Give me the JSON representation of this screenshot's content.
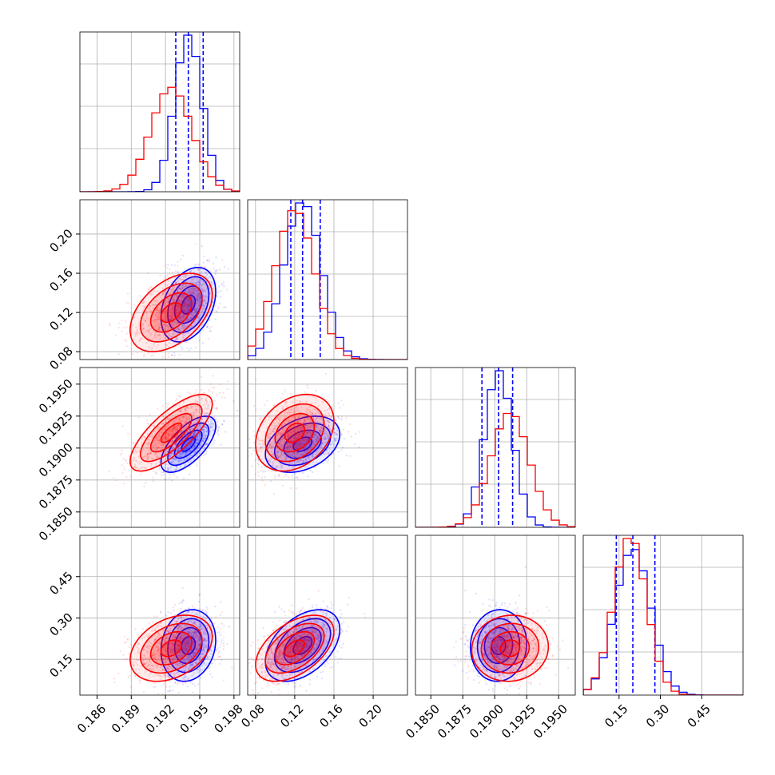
{
  "chart_data": {
    "type": "corner",
    "colors": {
      "blue": "#0000ff",
      "red": "#ff0000",
      "grid": "#b0b0b0",
      "frame": "#000000"
    },
    "series": [
      {
        "color": "blue",
        "mean": [
          0.194,
          0.128,
          0.1903,
          0.2
        ],
        "std": [
          0.0012,
          0.019,
          0.0011,
          0.065
        ],
        "corr": {
          "1,0": 0.35,
          "2,0": 0.65,
          "2,1": 0.35,
          "3,0": 0.15,
          "3,1": 0.45,
          "3,2": 0.05
        },
        "quantile_lines": [
          [
            0.1929,
            0.194,
            0.1953
          ],
          [
            0.116,
            0.128,
            0.146
          ],
          [
            0.189,
            0.1903,
            0.1914
          ],
          [
            0.14,
            0.2,
            0.28
          ]
        ]
      },
      {
        "color": "red",
        "mean": [
          0.1925,
          0.12,
          0.1912,
          0.19
        ],
        "std": [
          0.0018,
          0.02,
          0.0015,
          0.06
        ],
        "corr": {
          "1,0": 0.45,
          "2,0": 0.75,
          "2,1": 0.3,
          "3,0": 0.35,
          "3,1": 0.5,
          "3,2": 0.05
        }
      }
    ],
    "axes": [
      {
        "range": [
          0.1845,
          0.1985
        ],
        "ticks": [
          0.186,
          0.189,
          0.192,
          0.195,
          0.198
        ],
        "tick_labels": [
          "0.186",
          "0.189",
          "0.192",
          "0.195",
          "0.198"
        ]
      },
      {
        "range": [
          0.072,
          0.235
        ],
        "ticks": [
          0.08,
          0.12,
          0.16,
          0.2
        ],
        "tick_labels": [
          "0.08",
          "0.12",
          "0.16",
          "0.20"
        ]
      },
      {
        "range": [
          0.1838,
          0.1963
        ],
        "ticks": [
          0.185,
          0.1875,
          0.19,
          0.1925,
          0.195
        ],
        "tick_labels": [
          "0.1850",
          "0.1875",
          "0.1900",
          "0.1925",
          "0.1950"
        ]
      },
      {
        "range": [
          0.02,
          0.6
        ],
        "ticks": [
          0.15,
          0.3,
          0.45
        ],
        "tick_labels": [
          "0.15",
          "0.30",
          "0.45"
        ]
      }
    ],
    "grid": true,
    "hist_bins": 20
  }
}
